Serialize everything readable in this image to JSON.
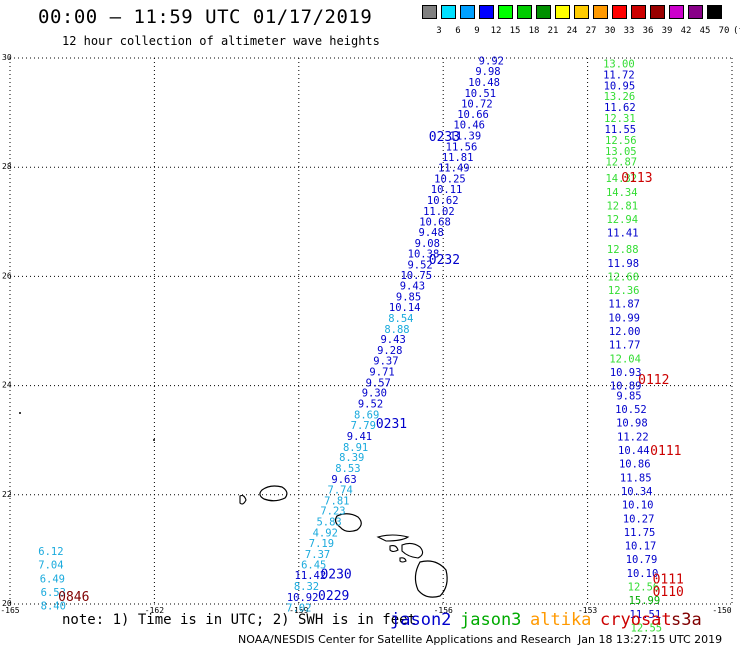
{
  "header": {
    "title": "00:00 – 11:59 UTC 01/17/2019",
    "subtitle": "12 hour collection of altimeter wave heights"
  },
  "colorbar": {
    "labels": [
      "3",
      "6",
      "9",
      "12",
      "15",
      "18",
      "21",
      "24",
      "27",
      "30",
      "33",
      "36",
      "39",
      "42",
      "45",
      "70",
      "(ft)"
    ],
    "colors": [
      "#808080",
      "#00e0ff",
      "#00a0ff",
      "#0000ff",
      "#00ff00",
      "#00cc00",
      "#009000",
      "#ffff00",
      "#ffcc00",
      "#ff9900",
      "#ff0000",
      "#cc0000",
      "#990000",
      "#cc00cc",
      "#880088",
      "#000000"
    ]
  },
  "map": {
    "lat_labels": [
      "30",
      "28",
      "26",
      "24",
      "22",
      "20"
    ],
    "lon_labels": [
      "-165",
      "-162",
      "-159",
      "-156",
      "-153",
      "-150"
    ],
    "lat_values": [
      30,
      28,
      26,
      24,
      22,
      20
    ],
    "lon_values": [
      -165,
      -162,
      -159,
      -156,
      -153,
      -150
    ],
    "lat_range": [
      20,
      30
    ],
    "lon_range": [
      -165,
      -150
    ]
  },
  "satellite_colors": {
    "jason2": "#0000cc",
    "jason3": "#00aa00",
    "altika": "#ff9900",
    "cryosat": "#cc0000",
    "s3a": "#800000",
    "low_wave": "#1aaadd",
    "jason3_light": "#33dd33"
  },
  "pass_labels": [
    {
      "text": "0233",
      "color": "#0000cc",
      "lon": -156.3,
      "lat": 28.55
    },
    {
      "text": "0232",
      "color": "#0000cc",
      "lon": -156.3,
      "lat": 26.3
    },
    {
      "text": "0231",
      "color": "#0000cc",
      "lon": -157.4,
      "lat": 23.3
    },
    {
      "text": "0230",
      "color": "#0000cc",
      "lon": -158.55,
      "lat": 20.54
    },
    {
      "text": "0229",
      "color": "#0000cc",
      "lon": -158.6,
      "lat": 20.15
    },
    {
      "text": "0113",
      "color": "#cc0000",
      "lon": -152.3,
      "lat": 27.8
    },
    {
      "text": "0112",
      "color": "#cc0000",
      "lon": -151.95,
      "lat": 24.1
    },
    {
      "text": "0111",
      "color": "#cc0000",
      "lon": -151.7,
      "lat": 22.8
    },
    {
      "text": "0111",
      "color": "#cc0000",
      "lon": -151.65,
      "lat": 20.45
    },
    {
      "text": "0110",
      "color": "#cc0000",
      "lon": -151.65,
      "lat": 20.22
    },
    {
      "text": "0846",
      "color": "#800000",
      "lon": -164.0,
      "lat": 20.13
    }
  ],
  "track_a": [
    {
      "v": "9.92",
      "lon": -155.0,
      "lat": 29.95,
      "c": "#0000cc"
    },
    {
      "v": "9.98",
      "lon": -155.07,
      "lat": 29.76,
      "c": "#0000cc"
    },
    {
      "v": "10.48",
      "lon": -155.15,
      "lat": 29.56,
      "c": "#0000cc"
    },
    {
      "v": "10.51",
      "lon": -155.23,
      "lat": 29.36,
      "c": "#0000cc"
    },
    {
      "v": "10.72",
      "lon": -155.3,
      "lat": 29.17,
      "c": "#0000cc"
    },
    {
      "v": "10.66",
      "lon": -155.38,
      "lat": 28.97,
      "c": "#0000cc"
    },
    {
      "v": "10.46",
      "lon": -155.46,
      "lat": 28.78,
      "c": "#0000cc"
    },
    {
      "v": "11.39",
      "lon": -155.54,
      "lat": 28.58,
      "c": "#0000cc"
    },
    {
      "v": "11.56",
      "lon": -155.62,
      "lat": 28.38,
      "c": "#0000cc"
    },
    {
      "v": "11.81",
      "lon": -155.7,
      "lat": 28.19,
      "c": "#0000cc"
    },
    {
      "v": "11.49",
      "lon": -155.78,
      "lat": 27.99,
      "c": "#0000cc"
    },
    {
      "v": "10.25",
      "lon": -155.86,
      "lat": 27.79,
      "c": "#0000cc"
    },
    {
      "v": "10.11",
      "lon": -155.93,
      "lat": 27.6,
      "c": "#0000cc"
    },
    {
      "v": "10.62",
      "lon": -156.01,
      "lat": 27.4,
      "c": "#0000cc"
    },
    {
      "v": "11.02",
      "lon": -156.09,
      "lat": 27.2,
      "c": "#0000cc"
    },
    {
      "v": "10.68",
      "lon": -156.17,
      "lat": 27.01,
      "c": "#0000cc"
    },
    {
      "v": "9.48",
      "lon": -156.25,
      "lat": 26.81,
      "c": "#0000cc"
    },
    {
      "v": "9.08",
      "lon": -156.33,
      "lat": 26.61,
      "c": "#0000cc"
    },
    {
      "v": "10.38",
      "lon": -156.41,
      "lat": 26.42,
      "c": "#0000cc"
    },
    {
      "v": "9.52",
      "lon": -156.48,
      "lat": 26.22,
      "c": "#0000cc"
    },
    {
      "v": "10.75",
      "lon": -156.56,
      "lat": 26.03,
      "c": "#0000cc"
    },
    {
      "v": "9.43",
      "lon": -156.64,
      "lat": 25.83,
      "c": "#0000cc"
    },
    {
      "v": "9.85",
      "lon": -156.72,
      "lat": 25.63,
      "c": "#0000cc"
    },
    {
      "v": "10.14",
      "lon": -156.8,
      "lat": 25.44,
      "c": "#0000cc"
    },
    {
      "v": "8.54",
      "lon": -156.88,
      "lat": 25.24,
      "c": "#1aaadd"
    },
    {
      "v": "8.88",
      "lon": -156.96,
      "lat": 25.04,
      "c": "#1aaadd"
    },
    {
      "v": "9.43",
      "lon": -157.04,
      "lat": 24.85,
      "c": "#0000cc"
    },
    {
      "v": "9.28",
      "lon": -157.11,
      "lat": 24.65,
      "c": "#0000cc"
    },
    {
      "v": "9.37",
      "lon": -157.19,
      "lat": 24.46,
      "c": "#0000cc"
    },
    {
      "v": "9.71",
      "lon": -157.27,
      "lat": 24.26,
      "c": "#0000cc"
    },
    {
      "v": "9.57",
      "lon": -157.35,
      "lat": 24.06,
      "c": "#0000cc"
    },
    {
      "v": "9.30",
      "lon": -157.43,
      "lat": 23.87,
      "c": "#0000cc"
    },
    {
      "v": "9.52",
      "lon": -157.51,
      "lat": 23.67,
      "c": "#0000cc"
    },
    {
      "v": "8.69",
      "lon": -157.59,
      "lat": 23.47,
      "c": "#1aaadd"
    },
    {
      "v": "7.79",
      "lon": -157.66,
      "lat": 23.28,
      "c": "#1aaadd"
    },
    {
      "v": "9.41",
      "lon": -157.74,
      "lat": 23.08,
      "c": "#0000cc"
    },
    {
      "v": "8.91",
      "lon": -157.82,
      "lat": 22.88,
      "c": "#1aaadd"
    },
    {
      "v": "8.39",
      "lon": -157.9,
      "lat": 22.69,
      "c": "#1aaadd"
    },
    {
      "v": "8.53",
      "lon": -157.98,
      "lat": 22.49,
      "c": "#1aaadd"
    },
    {
      "v": "9.63",
      "lon": -158.06,
      "lat": 22.29,
      "c": "#0000cc"
    },
    {
      "v": "7.74",
      "lon": -158.14,
      "lat": 22.1,
      "c": "#1aaadd"
    },
    {
      "v": "7.81",
      "lon": -158.21,
      "lat": 21.9,
      "c": "#1aaadd"
    },
    {
      "v": "7.23",
      "lon": -158.29,
      "lat": 21.71,
      "c": "#1aaadd"
    },
    {
      "v": "5.83",
      "lon": -158.37,
      "lat": 21.51,
      "c": "#1aaadd"
    },
    {
      "v": "4.92",
      "lon": -158.45,
      "lat": 21.31,
      "c": "#1aaadd"
    },
    {
      "v": "7.19",
      "lon": -158.53,
      "lat": 21.12,
      "c": "#1aaadd"
    },
    {
      "v": "7.37",
      "lon": -158.61,
      "lat": 20.92,
      "c": "#1aaadd"
    },
    {
      "v": "6.45",
      "lon": -158.69,
      "lat": 20.72,
      "c": "#1aaadd"
    },
    {
      "v": "11.42",
      "lon": -158.76,
      "lat": 20.53,
      "c": "#0000cc"
    },
    {
      "v": "8.32",
      "lon": -158.84,
      "lat": 20.33,
      "c": "#1aaadd"
    },
    {
      "v": "10.92",
      "lon": -158.92,
      "lat": 20.13,
      "c": "#0000cc"
    },
    {
      "v": "7.02",
      "lon": -159.0,
      "lat": 19.94,
      "c": "#1aaadd"
    }
  ],
  "track_b": [
    {
      "v": "13.00",
      "lon": -152.35,
      "lat": 29.9,
      "c": "#33dd33"
    },
    {
      "v": "11.72",
      "lon": -152.35,
      "lat": 29.7,
      "c": "#0000cc"
    },
    {
      "v": "10.95",
      "lon": -152.34,
      "lat": 29.5,
      "c": "#0000cc"
    },
    {
      "v": "13.26",
      "lon": -152.34,
      "lat": 29.3,
      "c": "#33dd33"
    },
    {
      "v": "11.62",
      "lon": -152.33,
      "lat": 29.1,
      "c": "#0000cc"
    },
    {
      "v": "12.31",
      "lon": -152.33,
      "lat": 28.9,
      "c": "#33dd33"
    },
    {
      "v": "11.55",
      "lon": -152.32,
      "lat": 28.7,
      "c": "#0000cc"
    },
    {
      "v": "12.56",
      "lon": -152.31,
      "lat": 28.5,
      "c": "#33dd33"
    },
    {
      "v": "13.05",
      "lon": -152.31,
      "lat": 28.3,
      "c": "#33dd33"
    },
    {
      "v": "12.87",
      "lon": -152.3,
      "lat": 28.1,
      "c": "#33dd33"
    },
    {
      "v": "14.32",
      "lon": -152.3,
      "lat": 27.8,
      "c": "#33dd33"
    },
    {
      "v": "14.34",
      "lon": -152.29,
      "lat": 27.55,
      "c": "#33dd33"
    },
    {
      "v": "12.81",
      "lon": -152.28,
      "lat": 27.3,
      "c": "#33dd33"
    },
    {
      "v": "12.94",
      "lon": -152.28,
      "lat": 27.05,
      "c": "#33dd33"
    },
    {
      "v": "11.41",
      "lon": -152.27,
      "lat": 26.8,
      "c": "#0000cc"
    },
    {
      "v": "12.88",
      "lon": -152.27,
      "lat": 26.5,
      "c": "#33dd33"
    },
    {
      "v": "11.98",
      "lon": -152.26,
      "lat": 26.25,
      "c": "#0000cc"
    },
    {
      "v": "12.60",
      "lon": -152.26,
      "lat": 26.0,
      "c": "#33dd33"
    },
    {
      "v": "12.36",
      "lon": -152.25,
      "lat": 25.75,
      "c": "#33dd33"
    },
    {
      "v": "11.87",
      "lon": -152.24,
      "lat": 25.5,
      "c": "#0000cc"
    },
    {
      "v": "10.99",
      "lon": -152.24,
      "lat": 25.25,
      "c": "#0000cc"
    },
    {
      "v": "12.00",
      "lon": -152.23,
      "lat": 25.0,
      "c": "#0000cc"
    },
    {
      "v": "11.77",
      "lon": -152.23,
      "lat": 24.75,
      "c": "#0000cc"
    },
    {
      "v": "12.04",
      "lon": -152.22,
      "lat": 24.5,
      "c": "#33dd33"
    },
    {
      "v": "10.93",
      "lon": -152.21,
      "lat": 24.25,
      "c": "#0000cc"
    },
    {
      "v": "10.89",
      "lon": -152.21,
      "lat": 24.0,
      "c": "#0000cc"
    },
    {
      "v": "9.85",
      "lon": -152.14,
      "lat": 23.82,
      "c": "#0000cc"
    },
    {
      "v": "10.52",
      "lon": -152.1,
      "lat": 23.57,
      "c": "#0000cc"
    },
    {
      "v": "10.98",
      "lon": -152.08,
      "lat": 23.32,
      "c": "#0000cc"
    },
    {
      "v": "11.22",
      "lon": -152.06,
      "lat": 23.07,
      "c": "#0000cc"
    },
    {
      "v": "10.44",
      "lon": -152.04,
      "lat": 22.82,
      "c": "#0000cc"
    },
    {
      "v": "10.86",
      "lon": -152.02,
      "lat": 22.57,
      "c": "#0000cc"
    },
    {
      "v": "11.85",
      "lon": -152.0,
      "lat": 22.32,
      "c": "#0000cc"
    },
    {
      "v": "10.34",
      "lon": -151.98,
      "lat": 22.07,
      "c": "#0000cc"
    },
    {
      "v": "10.10",
      "lon": -151.96,
      "lat": 21.82,
      "c": "#0000cc"
    },
    {
      "v": "10.27",
      "lon": -151.94,
      "lat": 21.57,
      "c": "#0000cc"
    },
    {
      "v": "11.75",
      "lon": -151.92,
      "lat": 21.32,
      "c": "#0000cc"
    },
    {
      "v": "10.17",
      "lon": -151.9,
      "lat": 21.07,
      "c": "#0000cc"
    },
    {
      "v": "10.79",
      "lon": -151.88,
      "lat": 20.82,
      "c": "#0000cc"
    },
    {
      "v": "10.10",
      "lon": -151.86,
      "lat": 20.57,
      "c": "#0000cc"
    },
    {
      "v": "12.56",
      "lon": -151.84,
      "lat": 20.32,
      "c": "#33dd33"
    },
    {
      "v": "15.99",
      "lon": -151.82,
      "lat": 20.07,
      "c": "#00aa00"
    },
    {
      "v": "11.51",
      "lon": -151.8,
      "lat": 19.82,
      "c": "#0000cc"
    },
    {
      "v": "12.55",
      "lon": -151.78,
      "lat": 19.57,
      "c": "#33dd33"
    }
  ],
  "track_c": [
    {
      "v": "6.12",
      "lon": -164.15,
      "lat": 20.97,
      "c": "#1aaadd"
    },
    {
      "v": "7.04",
      "lon": -164.15,
      "lat": 20.72,
      "c": "#1aaadd"
    },
    {
      "v": "6.49",
      "lon": -164.12,
      "lat": 20.47,
      "c": "#1aaadd"
    },
    {
      "v": "6.53",
      "lon": -164.1,
      "lat": 20.22,
      "c": "#1aaadd"
    },
    {
      "v": "8.40",
      "lon": -164.1,
      "lat": 19.97,
      "c": "#1aaadd"
    }
  ],
  "footer": {
    "note": "note: 1) Time is in UTC; 2) SWH is in feet",
    "legend": [
      {
        "name": "jason2",
        "color": "#0000cc"
      },
      {
        "name": "jason3",
        "color": "#00aa00"
      },
      {
        "name": "altika",
        "color": "#ff9900"
      },
      {
        "name": "cryosat",
        "color": "#cc0000"
      },
      {
        "name": "s3a",
        "color": "#800000"
      }
    ],
    "credit": "NOAA/NESDIS Center for Satellite Applications and Research",
    "timestamp": "Jan 18 13:27:15 UTC 2019"
  }
}
